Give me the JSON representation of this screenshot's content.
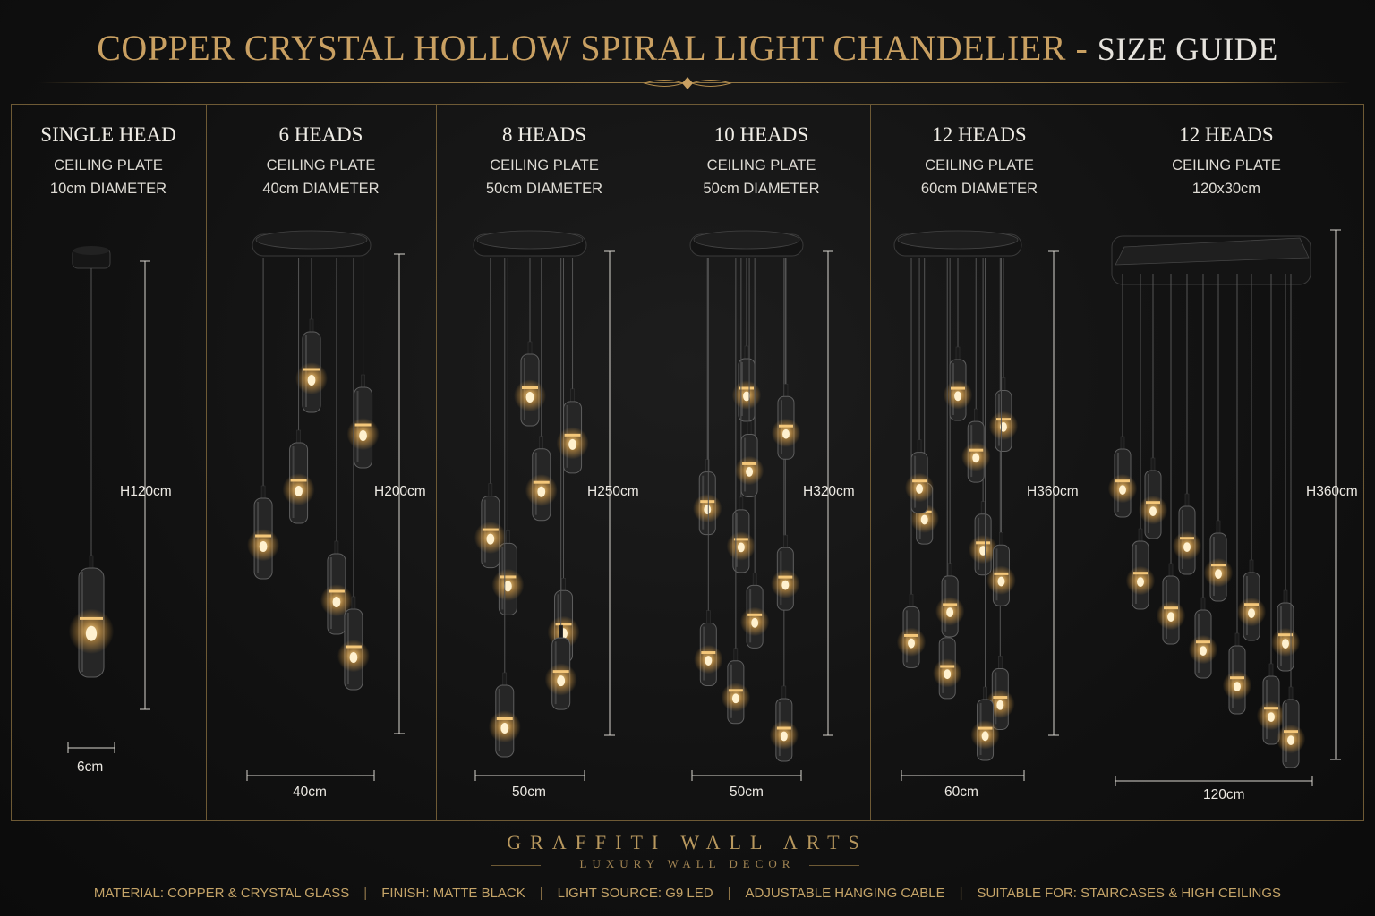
{
  "title": {
    "main": "COPPER CRYSTAL HOLLOW SPIRAL LIGHT CHANDELIER",
    "dash": " - ",
    "sub": "SIZE GUIDE"
  },
  "columns": [
    {
      "heading": "SINGLE HEAD",
      "plate_label": "CEILING PLATE",
      "plate_size": "10cm DIAMETER",
      "height": "H120cm",
      "width": "6cm",
      "heads": 1
    },
    {
      "heading": "6 HEADS",
      "plate_label": "CEILING PLATE",
      "plate_size": "40cm DIAMETER",
      "height": "H200cm",
      "width": "40cm",
      "heads": 6
    },
    {
      "heading": "8 HEADS",
      "plate_label": "CEILING PLATE",
      "plate_size": "50cm DIAMETER",
      "height": "H250cm",
      "width": "50cm",
      "heads": 8
    },
    {
      "heading": "10 HEADS",
      "plate_label": "CEILING PLATE",
      "plate_size": "50cm DIAMETER",
      "height": "H320cm",
      "width": "50cm",
      "heads": 10
    },
    {
      "heading": "12 HEADS",
      "plate_label": "CEILING PLATE",
      "plate_size": "60cm DIAMETER",
      "height": "H360cm",
      "width": "60cm",
      "heads": 12
    },
    {
      "heading": "12 HEADS",
      "plate_label": "CEILING PLATE",
      "plate_size": "120x30cm",
      "height": "H360cm",
      "width": "120cm",
      "heads": 12
    }
  ],
  "brand": {
    "name": "GRAFFITI WALL ARTS",
    "tagline": "LUXURY WALL DECOR"
  },
  "footer": {
    "items": [
      "MATERIAL: COPPER & CRYSTAL GLASS",
      "FINISH: MATTE BLACK",
      "LIGHT SOURCE: G9 LED",
      "ADJUSTABLE HANGING CABLE",
      "SUITABLE FOR: STAIRCASES & HIGH CEILINGS"
    ],
    "separator": "|"
  },
  "colors": {
    "gold": "#c9a062",
    "background": "#121212",
    "frame": "#6e5a35",
    "pendant": "#2a2a2a",
    "bulb": "#ffd68a"
  }
}
